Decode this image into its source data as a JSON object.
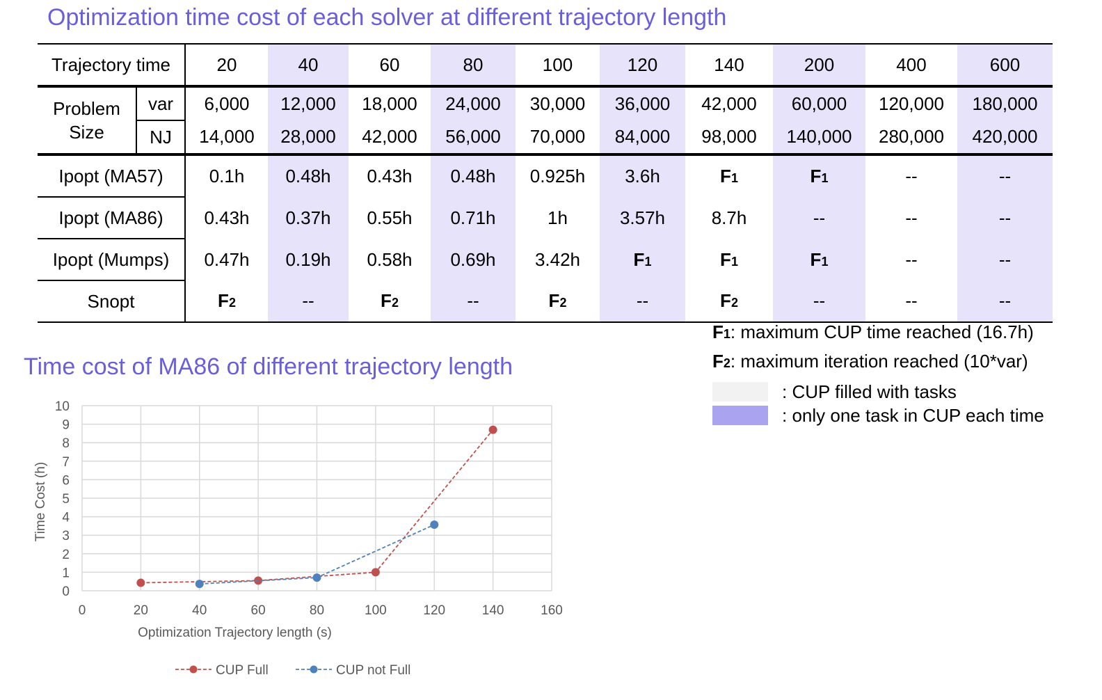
{
  "title_table": "Optimization time cost of each solver at different trajectory length",
  "title_chart": "Time cost of MA86 of different trajectory length",
  "table": {
    "header_label": "Trajectory time",
    "columns": [
      "20",
      "40",
      "60",
      "80",
      "100",
      "120",
      "140",
      "200",
      "400",
      "600"
    ],
    "problem_size_label": "Problem Size",
    "var_label": "var",
    "nj_label": "NJ",
    "var_values": [
      "6,000",
      "12,000",
      "18,000",
      "24,000",
      "30,000",
      "36,000",
      "42,000",
      "60,000",
      "120,000",
      "180,000"
    ],
    "nj_values": [
      "14,000",
      "28,000",
      "42,000",
      "56,000",
      "70,000",
      "84,000",
      "98,000",
      "140,000",
      "280,000",
      "420,000"
    ],
    "rows": [
      {
        "label": "Ipopt (MA57)",
        "cells": [
          "0.1h",
          "0.48h",
          "0.43h",
          "0.48h",
          "0.925h",
          "3.6h",
          "F1",
          "F1",
          "--",
          "--"
        ]
      },
      {
        "label": "Ipopt (MA86)",
        "cells": [
          "0.43h",
          "0.37h",
          "0.55h",
          "0.71h",
          "1h",
          "3.57h",
          "8.7h",
          "--",
          "--",
          "--"
        ]
      },
      {
        "label": "Ipopt (Mumps)",
        "cells": [
          "0.47h",
          "0.19h",
          "0.58h",
          "0.69h",
          "3.42h",
          "F1",
          "F1",
          "F1",
          "--",
          "--"
        ]
      },
      {
        "label": "Snopt",
        "cells": [
          "F2",
          "--",
          "F2",
          "--",
          "F2",
          "--",
          "F2",
          "--",
          "--",
          "--"
        ]
      }
    ],
    "highlight_color": "#e6e3fa"
  },
  "notes": {
    "f1_key": "F",
    "f1_sub": "1",
    "f1_text": ": maximum CUP time reached (16.7h)",
    "f2_key": "F",
    "f2_sub": "2",
    "f2_text": ": maximum iteration reached (10*var)",
    "swatch_full_text": ": CUP filled with tasks",
    "swatch_full_color": "#f2f2f2",
    "swatch_one_text": ": only one task in CUP each time",
    "swatch_one_color": "#aaa4f0"
  },
  "chart_data": {
    "type": "line",
    "title": "Time cost of MA86 of different trajectory length",
    "xlabel": "Optimization Trajectory length (s)",
    "ylabel": "Time Cost (h)",
    "xlim": [
      0,
      160
    ],
    "ylim": [
      0,
      10
    ],
    "xticks": [
      0,
      20,
      40,
      60,
      80,
      100,
      120,
      140,
      160
    ],
    "yticks": [
      0,
      1,
      2,
      3,
      4,
      5,
      6,
      7,
      8,
      9,
      10
    ],
    "grid": true,
    "legend_position": "bottom",
    "series": [
      {
        "name": "CUP Full",
        "color": "#c0504d",
        "points": [
          [
            20,
            0.43
          ],
          [
            60,
            0.55
          ],
          [
            100,
            1.0
          ],
          [
            140,
            8.7
          ]
        ]
      },
      {
        "name": "CUP not Full",
        "color": "#4f81bd",
        "points": [
          [
            40,
            0.37
          ],
          [
            80,
            0.71
          ],
          [
            120,
            3.57
          ]
        ]
      }
    ]
  }
}
